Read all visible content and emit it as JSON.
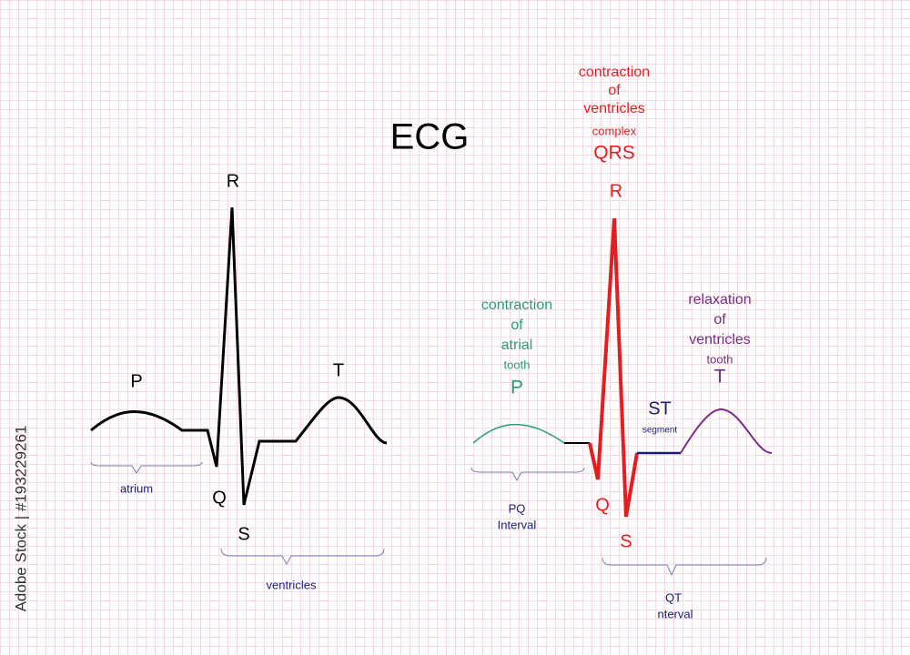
{
  "title": "ECG",
  "watermark": "Adobe Stock | #193229261",
  "left_diagram": {
    "p": "P",
    "r": "R",
    "t": "T",
    "q": "Q",
    "s": "S",
    "atrium": "atrium",
    "ventricles": "ventricles"
  },
  "right_diagram": {
    "qrs_caption": [
      "contraction",
      "of",
      "ventricles",
      "complex"
    ],
    "qrs": "QRS",
    "r": "R",
    "q": "Q",
    "s": "S",
    "p_caption": [
      "contraction",
      "of",
      "atrial",
      "tooth"
    ],
    "p": "P",
    "st": "ST",
    "st_caption": "segment",
    "t_caption": [
      "relaxation",
      "of",
      "ventricles",
      "tooth"
    ],
    "t": "T",
    "pq": [
      "PQ",
      "Interval"
    ],
    "qt": [
      "QT",
      "nterval"
    ]
  }
}
